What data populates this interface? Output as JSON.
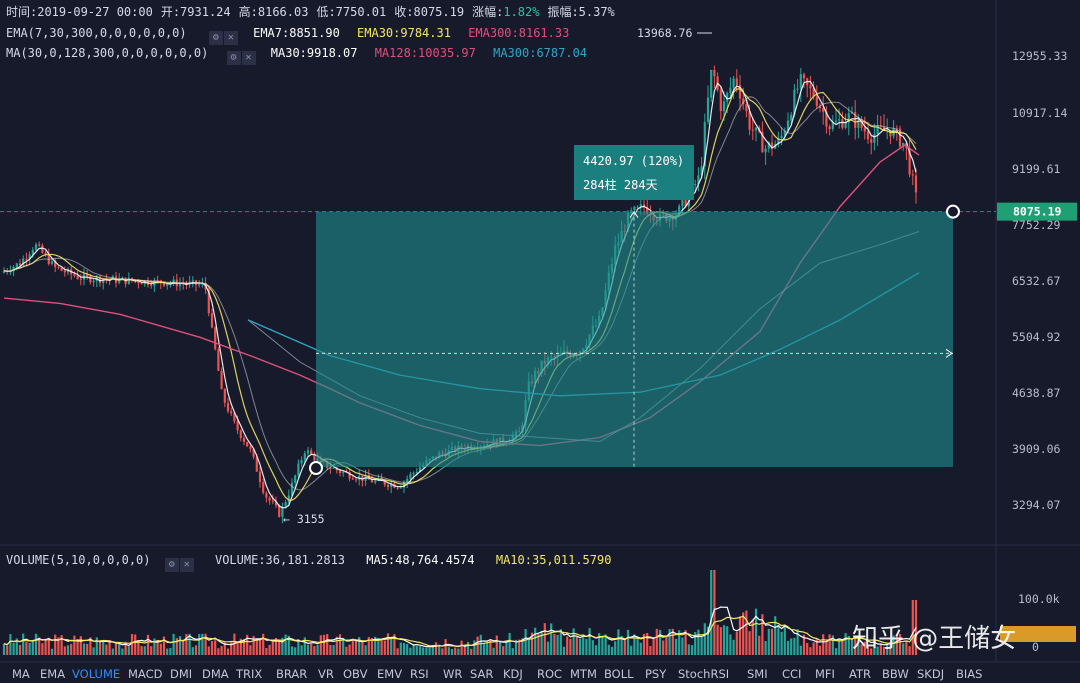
{
  "header": {
    "line1": [
      {
        "text": "时间:2019-09-27 00:00",
        "color": "#d6dae6"
      },
      {
        "text": "开:7931.24",
        "color": "#d6dae6"
      },
      {
        "text": "高:8166.03",
        "color": "#d6dae6"
      },
      {
        "text": "低:7750.01",
        "color": "#d6dae6"
      },
      {
        "text": "收:8075.19",
        "color": "#d6dae6"
      },
      {
        "text": "涨幅:",
        "color": "#d6dae6"
      },
      {
        "text": "1.82%",
        "color": "#26c6a0"
      },
      {
        "text": "振幅:5.37%",
        "color": "#d6dae6"
      }
    ],
    "ema_label": "EMA(7,30,300,0,0,0,0,0,0)",
    "ema7": "EMA7:8851.90",
    "ema30": "EMA30:9784.31",
    "ema300": "EMA300:8161.33",
    "ma_label": "MA(30,0,128,300,0,0,0,0,0,0)",
    "ma30": "MA30:9918.07",
    "ma128": "MA128:10035.97",
    "ma300": "MA300:6787.04",
    "volume_label": "VOLUME(5,10,0,0,0,0)",
    "volume": "VOLUME:36,181.2813",
    "ma5": "MA5:48,764.4574",
    "ma10": "MA10:35,011.5790"
  },
  "colors": {
    "up": "#26a69a",
    "down": "#ef5350",
    "ema7": "#ffffff",
    "ema30": "#f5e663",
    "ema300": "#e0507c",
    "ma300": "#2ea6c8",
    "box": "#1f8d8d",
    "accent": "#1f9f73"
  },
  "annotations": {
    "high_label": "13968.76",
    "low_label": "← 3155",
    "measure_line1": "4420.97 (120%)",
    "measure_line2": "284柱 284天",
    "price_tag": "8075.19",
    "watermark": "知乎 @王储女"
  },
  "chart_data": {
    "type": "candlestick",
    "y_axis": {
      "ticks": [
        "12955.33",
        "10917.14",
        "9199.61",
        "7752.29",
        "6532.67",
        "5504.92",
        "4638.87",
        "3909.06",
        "3294.07"
      ]
    },
    "volume_axis": {
      "ticks": [
        "100.0k",
        "0"
      ]
    },
    "current_price": 8075.19,
    "high": 13968.76,
    "low": 3155,
    "measure": {
      "change": 4420.97,
      "percent": 120,
      "bars": 284,
      "days": 284
    }
  },
  "bottom_tabs": [
    "MA",
    "EMA",
    "VOLUME",
    "MACD",
    "DMI",
    "DMA",
    "TRIX",
    "BRAR",
    "VR",
    "OBV",
    "EMV",
    "RSI",
    "WR",
    "SAR",
    "KDJ",
    "ROC",
    "MTM",
    "BOLL",
    "PSY",
    "StochRSI",
    "SMI",
    "CCI",
    "MFI",
    "ATR",
    "BBW",
    "SKDJ",
    "BIAS"
  ],
  "active_tab": "VOLUME"
}
